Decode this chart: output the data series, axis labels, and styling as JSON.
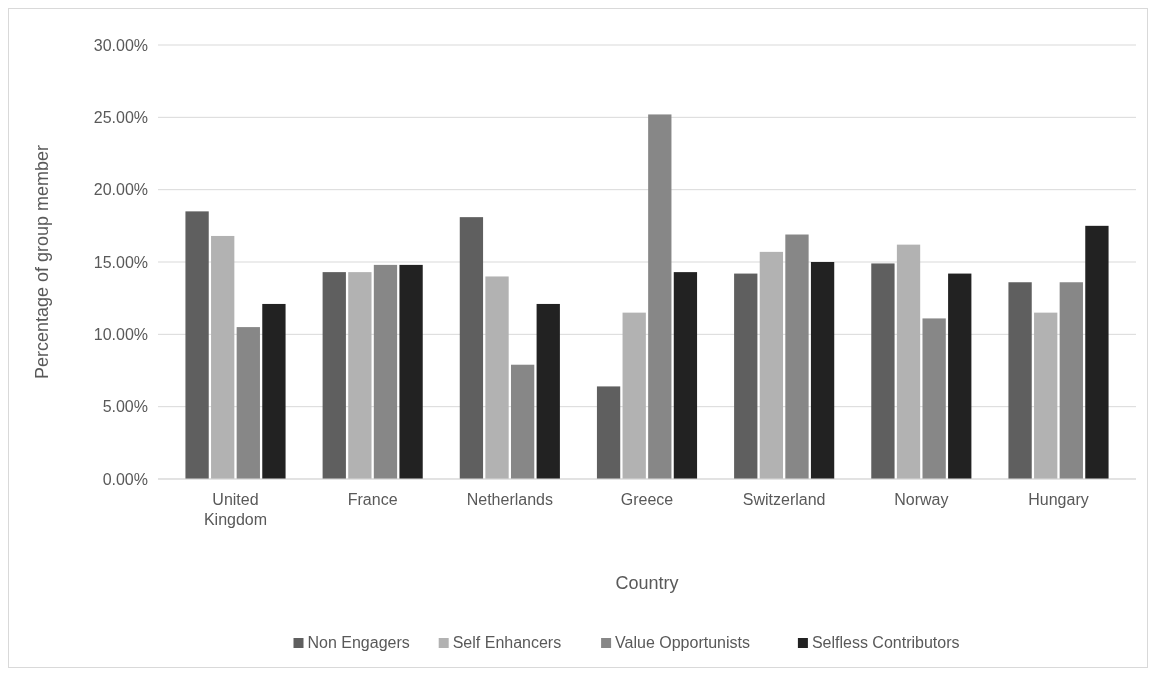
{
  "chart_data": {
    "type": "bar",
    "xlabel": "Country",
    "ylabel": "Percentage of group member",
    "categories": [
      "United Kingdom",
      "France",
      "Netherlands",
      "Greece",
      "Switzerland",
      "Norway",
      "Hungary"
    ],
    "series": [
      {
        "name": "Non Engagers",
        "color": "#5f5f5f",
        "values": [
          18.5,
          14.3,
          18.1,
          6.4,
          14.2,
          14.9,
          13.6
        ]
      },
      {
        "name": "Self Enhancers",
        "color": "#b2b2b2",
        "values": [
          16.8,
          14.3,
          14.0,
          11.5,
          15.7,
          16.2,
          11.5
        ]
      },
      {
        "name": "Value Opportunists",
        "color": "#878787",
        "values": [
          10.5,
          14.8,
          7.9,
          25.2,
          16.9,
          11.1,
          13.6
        ]
      },
      {
        "name": "Selfless Contributors",
        "color": "#222222",
        "values": [
          12.1,
          14.8,
          12.1,
          14.3,
          15.0,
          14.2,
          17.5
        ]
      }
    ],
    "ylim": [
      0,
      30
    ],
    "yticks": [
      {
        "value": 0,
        "label": "0.00%"
      },
      {
        "value": 5,
        "label": "5.00%"
      },
      {
        "value": 10,
        "label": "10.00%"
      },
      {
        "value": 15,
        "label": "15.00%"
      },
      {
        "value": 20,
        "label": "20.00%"
      },
      {
        "value": 25,
        "label": "25.00%"
      },
      {
        "value": 30,
        "label": "30.00%"
      }
    ],
    "grid": "y",
    "legend": "bottom"
  }
}
